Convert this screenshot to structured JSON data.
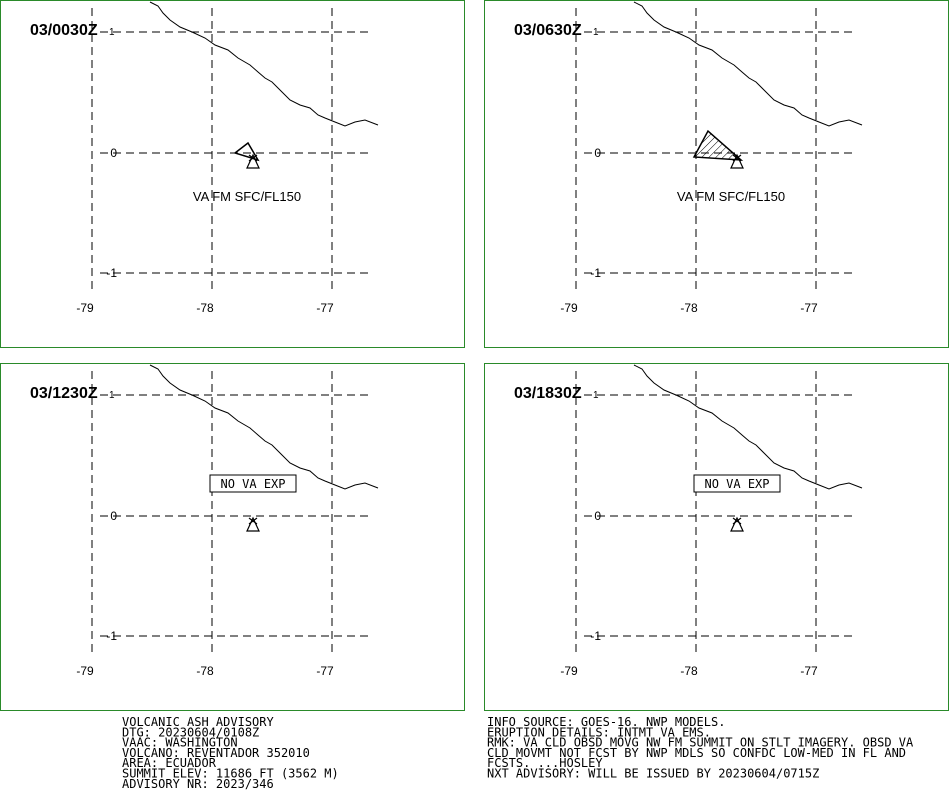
{
  "panels": [
    {
      "time": "03/0030Z",
      "suffix": "1",
      "annotation": "VA FM SFC/FL150"
    },
    {
      "time": "03/0630Z",
      "suffix": "1",
      "annotation": "VA FM SFC/FL150"
    },
    {
      "time": "03/1230Z",
      "suffix": "1",
      "annotation": "NO VA EXP"
    },
    {
      "time": "03/1830Z",
      "suffix": "1",
      "annotation": "NO VA EXP"
    }
  ],
  "lon_labels": [
    "-79",
    "-78",
    "-77"
  ],
  "lat_labels": [
    "0",
    "-1"
  ],
  "advisory_left": [
    "VOLCANIC ASH ADVISORY",
    "DTG: 20230604/0108Z",
    "VAAC: WASHINGTON",
    "VOLCANO: REVENTADOR 352010",
    "AREA: ECUADOR",
    "SUMMIT ELEV: 11686 FT (3562 M)",
    "ADVISORY NR: 2023/346"
  ],
  "advisory_right": [
    "INFO SOURCE: GOES-16. NWP MODELS.",
    "ERUPTION DETAILS: INTMT VA EMS.",
    "RMK: VA CLD OBSD MOVG NW FM SUMMIT ON STLT IMAGERY. OBSD VA",
    "CLD MOVMT NOT FCST BY NWP MDLS SO CONFDC LOW-MED IN FL AND",
    "FCSTS. ...HOSLEY",
    "NXT ADVISORY: WILL BE ISSUED BY 20230604/0715Z"
  ]
}
